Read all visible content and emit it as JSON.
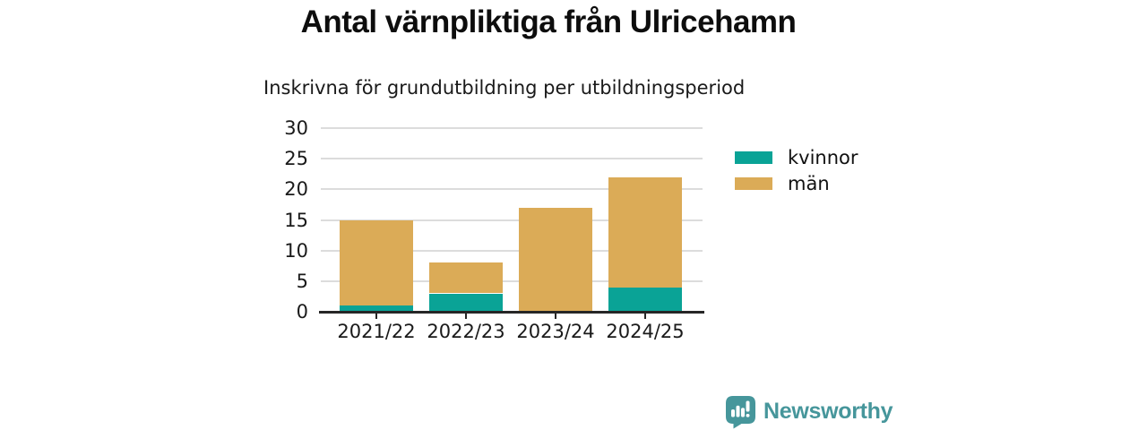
{
  "header": {
    "title": "Antal värnpliktiga från Ulricehamn",
    "subtitle": "Inskrivna för grundutbildning per utbildningsperiod"
  },
  "chart_data": {
    "type": "bar",
    "stacked": true,
    "title": "Antal värnpliktiga från Ulricehamn",
    "subtitle": "Inskrivna för grundutbildning per utbildningsperiod",
    "categories": [
      "2021/22",
      "2022/23",
      "2023/24",
      "2024/25"
    ],
    "series": [
      {
        "name": "kvinnor",
        "color": "#0aa396",
        "values": [
          1,
          3,
          0,
          4
        ]
      },
      {
        "name": "män",
        "color": "#dbab57",
        "values": [
          14,
          5,
          17,
          18
        ]
      }
    ],
    "stack_totals": [
      15,
      8,
      17,
      22
    ],
    "ylim": [
      0,
      30
    ],
    "yticks": [
      0,
      5,
      10,
      15,
      20,
      25,
      30
    ],
    "grid": "horizontal",
    "legend_position": "right"
  },
  "branding": {
    "logo_text": "Newsworthy",
    "logo_color": "#46969b"
  },
  "colors": {
    "axis": "#262626",
    "gridline": "#dcdcdc",
    "text": "#1a1a1a"
  }
}
